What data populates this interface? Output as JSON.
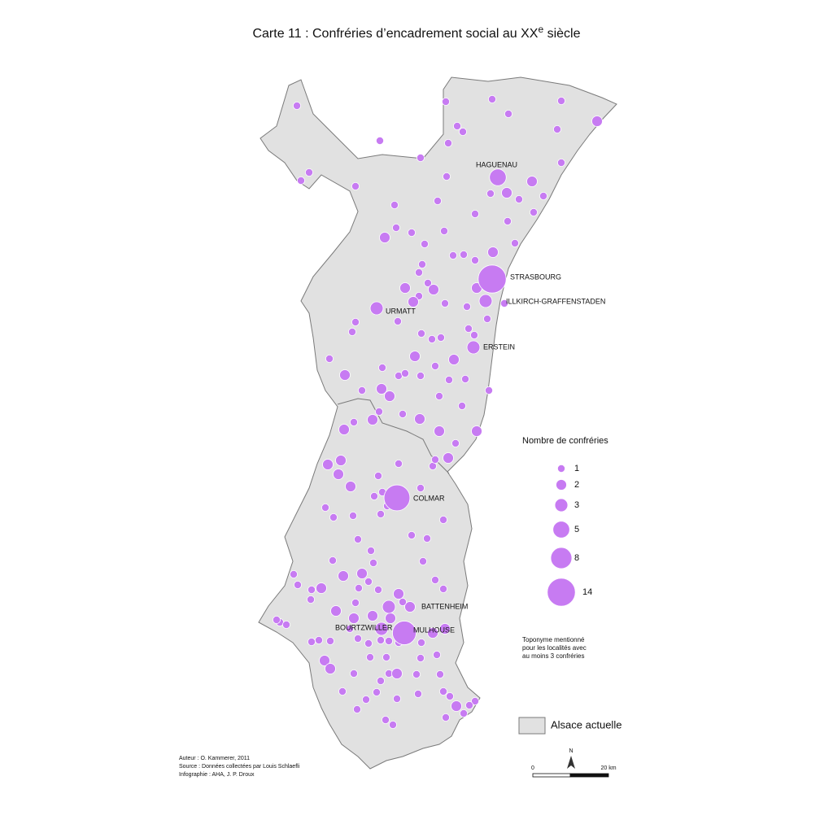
{
  "header": {
    "title_parts": [
      "Carte 11 : Confréries d’encadrement social au XX",
      "e",
      " siècle"
    ]
  },
  "towns": [
    {
      "label": "HAGUENAU",
      "count": 5
    },
    {
      "label": "STRASBOURG",
      "count": 14
    },
    {
      "label": "ILLKIRCH-GRAFFENSTADEN",
      "count": 3
    },
    {
      "label": "URMATT",
      "count": 3
    },
    {
      "label": "ERSTEIN",
      "count": 3
    },
    {
      "label": "COLMAR",
      "count": 12
    },
    {
      "label": "BATTENHEIM",
      "count": 3
    },
    {
      "label": "BOURTZWILLER",
      "count": 3
    },
    {
      "label": "MULHOUSE",
      "count": 10
    }
  ],
  "dots": {
    "counts": [
      1,
      1,
      1,
      1,
      1,
      2,
      1,
      1,
      1,
      1,
      1,
      1,
      1,
      1,
      1,
      1,
      2,
      1,
      1,
      2,
      1,
      1,
      1,
      1,
      1,
      1,
      1,
      2,
      1,
      1,
      1,
      1,
      1,
      1,
      1,
      2,
      1,
      1,
      1,
      2,
      2,
      1,
      2,
      1,
      2,
      1,
      1,
      1,
      1,
      1,
      1,
      1,
      1,
      1,
      1,
      1,
      1,
      2,
      2,
      1,
      2,
      1,
      1,
      1,
      1,
      1,
      1,
      1,
      2,
      2,
      1,
      1,
      1,
      1,
      1,
      1,
      2,
      2,
      2,
      2,
      1,
      2,
      2,
      1,
      1,
      1,
      1,
      2,
      2,
      2,
      2,
      1,
      1,
      1,
      1,
      1,
      1,
      1,
      1,
      1,
      1,
      1,
      1,
      1,
      1,
      1,
      1,
      2,
      2,
      1,
      1,
      1,
      1,
      1,
      1,
      1,
      1,
      1,
      1,
      2,
      1,
      2,
      2,
      1,
      2,
      2,
      2,
      2,
      1,
      1,
      1,
      1,
      1,
      1,
      1,
      1,
      2,
      2,
      1,
      1,
      1,
      1,
      1,
      1,
      1,
      1,
      1,
      2,
      2,
      1,
      1,
      1,
      2,
      1,
      1,
      1,
      1,
      1,
      1,
      1,
      1,
      1,
      1,
      1,
      1,
      2,
      1,
      1,
      1,
      1
    ]
  },
  "legend": {
    "title": "Nombre de confréries",
    "sizes": [
      1,
      2,
      3,
      5,
      8,
      14
    ],
    "note_lines": [
      "Toponyme mentionné",
      "pour les localités avec",
      "au moins 3 confréries"
    ],
    "area_label": "Alsace actuelle"
  },
  "credits": [
    "Auteur : O. Kammerer, 2011",
    "Source : Données collectées par Louis Schlaefli",
    "Infographie : AHA, J. P. Droux"
  ],
  "scale": {
    "start": "0",
    "end": "20 km",
    "north": "N"
  }
}
